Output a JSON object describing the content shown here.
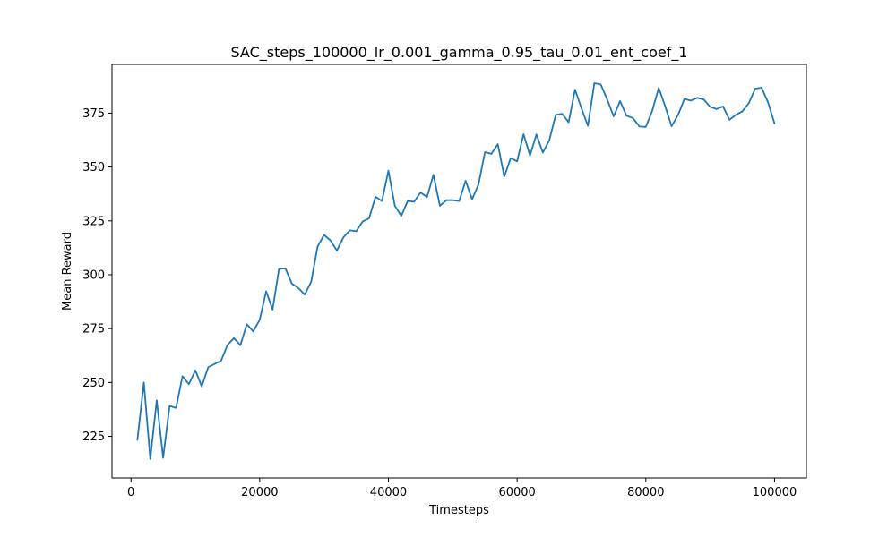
{
  "chart_data": {
    "type": "line",
    "title": "SAC_steps_100000_lr_0.001_gamma_0.95_tau_0.01_ent_coef_1",
    "xlabel": "Timesteps",
    "ylabel": "Mean Reward",
    "xlim": [
      -2950,
      104950
    ],
    "ylim": [
      205.7,
      397.6
    ],
    "xticks": [
      0,
      20000,
      40000,
      60000,
      80000,
      100000
    ],
    "yticks": [
      225,
      250,
      275,
      300,
      325,
      350,
      375
    ],
    "grid": false,
    "legend": null,
    "series": [
      {
        "color": "#1f77b4",
        "x": [
          1000,
          2000,
          3000,
          4000,
          5000,
          6000,
          7000,
          8000,
          9000,
          10000,
          11000,
          12000,
          13000,
          14000,
          15000,
          16000,
          17000,
          18000,
          19000,
          20000,
          21000,
          22000,
          23000,
          24000,
          25000,
          26000,
          27000,
          28000,
          29000,
          30000,
          31000,
          32000,
          33000,
          34000,
          35000,
          36000,
          37000,
          38000,
          39000,
          40000,
          41000,
          42000,
          43000,
          44000,
          45000,
          46000,
          47000,
          48000,
          49000,
          50000,
          51000,
          52000,
          53000,
          54000,
          55000,
          56000,
          57000,
          58000,
          59000,
          60000,
          61000,
          62000,
          63000,
          64000,
          65000,
          66000,
          67000,
          68000,
          69000,
          70000,
          71000,
          72000,
          73000,
          74000,
          75000,
          76000,
          77000,
          78000,
          79000,
          80000,
          81000,
          82000,
          83000,
          84000,
          85000,
          86000,
          87000,
          88000,
          89000,
          90000,
          91000,
          92000,
          93000,
          94000,
          95000,
          96000,
          97000,
          98000,
          99000,
          100000
        ],
        "y": [
          223.4,
          250.0,
          214.5,
          241.7,
          215.0,
          239.1,
          238.2,
          252.9,
          249.2,
          255.6,
          248.2,
          257.1,
          258.6,
          260.1,
          267.4,
          270.6,
          267.3,
          277.0,
          273.7,
          279.1,
          292.3,
          283.8,
          302.7,
          302.9,
          295.9,
          293.8,
          290.8,
          296.7,
          313.1,
          318.5,
          315.9,
          311.2,
          317.3,
          320.6,
          320.2,
          324.7,
          326.2,
          336.2,
          334.2,
          348.3,
          332.0,
          327.3,
          334.2,
          333.9,
          338.2,
          336.0,
          346.4,
          332.0,
          334.6,
          334.6,
          334.2,
          343.6,
          335.0,
          341.9,
          356.9,
          356.1,
          360.6,
          345.6,
          354.1,
          352.6,
          365.2,
          355.4,
          365.1,
          356.7,
          362.4,
          374.2,
          374.7,
          370.8,
          385.9,
          377.2,
          369.1,
          388.9,
          388.3,
          381.3,
          373.5,
          380.6,
          373.8,
          372.7,
          368.8,
          368.6,
          376.1,
          386.7,
          378.3,
          368.9,
          374.1,
          381.6,
          380.8,
          382.1,
          381.3,
          377.9,
          376.9,
          378.1,
          371.9,
          374.2,
          375.8,
          379.6,
          386.4,
          386.8,
          379.9,
          370.2
        ]
      }
    ]
  }
}
